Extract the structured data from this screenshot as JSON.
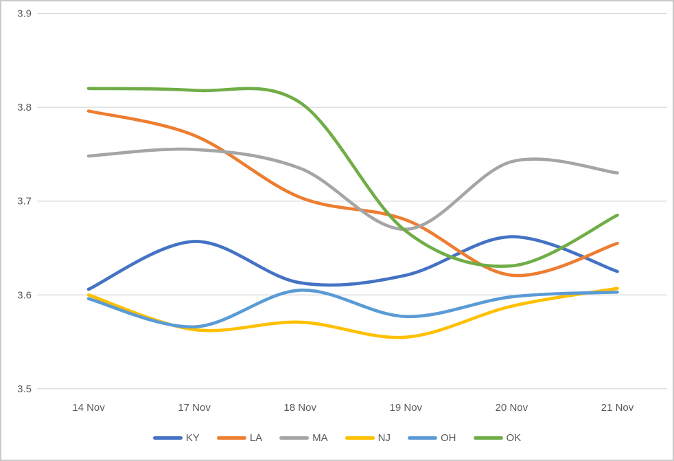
{
  "chart_data": {
    "type": "line",
    "title": "",
    "xlabel": "",
    "ylabel": "",
    "line_style": "smooth",
    "grid": true,
    "legend_position": "bottom",
    "categories": [
      "14 Nov",
      "17 Nov",
      "18 Nov",
      "19 Nov",
      "20 Nov",
      "21 Nov"
    ],
    "series": [
      {
        "name": "KY",
        "color": "#4472C4",
        "values": [
          3.606,
          3.657,
          3.613,
          3.621,
          3.662,
          3.625
        ]
      },
      {
        "name": "LA",
        "color": "#ED7D31",
        "values": [
          3.796,
          3.77,
          3.704,
          3.68,
          3.621,
          3.655
        ]
      },
      {
        "name": "MA",
        "color": "#A5A5A5",
        "values": [
          3.748,
          3.755,
          3.735,
          3.67,
          3.742,
          3.73
        ]
      },
      {
        "name": "NJ",
        "color": "#FFC000",
        "values": [
          3.6,
          3.563,
          3.571,
          3.555,
          3.588,
          3.607
        ]
      },
      {
        "name": "OH",
        "color": "#5B9BD5",
        "values": [
          3.596,
          3.566,
          3.605,
          3.577,
          3.598,
          3.603
        ]
      },
      {
        "name": "OK",
        "color": "#70AD47",
        "values": [
          3.82,
          3.818,
          3.805,
          3.668,
          3.631,
          3.685
        ]
      }
    ],
    "ylim": [
      3.5,
      3.9
    ],
    "yticks": [
      3.9,
      3.8,
      3.7,
      3.6,
      3.5
    ],
    "ytick_labels": [
      "3.9",
      "3.8",
      "3.7",
      "3.6",
      "3.5"
    ],
    "axis_label_color": "#595959",
    "gridline_color": "#D9D9D9",
    "background_color": "#FFFFFF",
    "border_color": "#C9C9C9"
  }
}
